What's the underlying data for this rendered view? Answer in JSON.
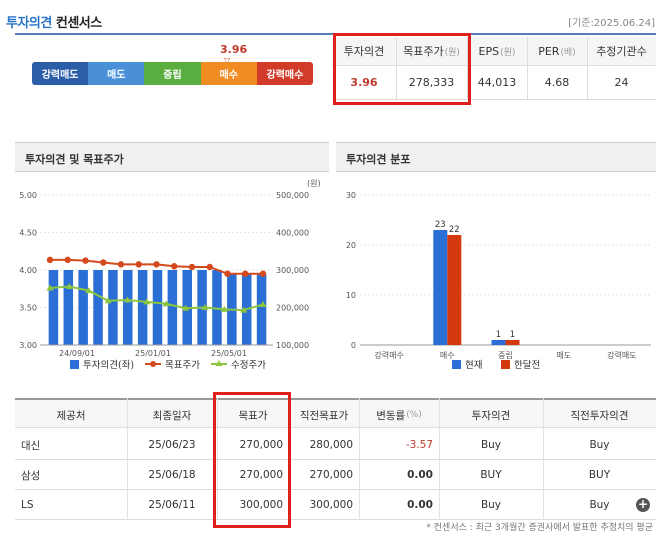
{
  "header": {
    "title_a": "투자의견",
    "title_b": "컨센서스",
    "date": "[기준:2025.06.24]"
  },
  "scale": {
    "score": "3.96",
    "marker": "▽",
    "segments": [
      {
        "label": "강력매도",
        "color": "#2c5ea8"
      },
      {
        "label": "매도",
        "color": "#4a90d9"
      },
      {
        "label": "중립",
        "color": "#5aad3f"
      },
      {
        "label": "매수",
        "color": "#f08c21"
      },
      {
        "label": "강력매수",
        "color": "#d23b2a"
      }
    ]
  },
  "summary": {
    "headers": [
      "투자의견",
      "목표주가",
      "EPS",
      "PER",
      "추정기관수"
    ],
    "units": [
      "",
      "(원)",
      "(원)",
      "(배)",
      ""
    ],
    "values": [
      "3.96",
      "278,333",
      "44,013",
      "4.68",
      "24"
    ]
  },
  "chart_left": {
    "panel_title": "투자의견 및 목표주가",
    "y2_unit": "(원)",
    "chart_data": {
      "type": "bar",
      "x_ticks": [
        "24/09/01",
        "25/01/01",
        "25/05/01"
      ],
      "y_left_ticks": [
        "3.00",
        "3.50",
        "4.00",
        "4.50",
        "5.00"
      ],
      "y_right_ticks": [
        "100,000",
        "200,000",
        "300,000",
        "400,000",
        "500,000"
      ],
      "ylim_left": [
        3.0,
        5.0
      ],
      "ylim_right": [
        100000,
        500000
      ],
      "series": [
        {
          "name": "투자의견(좌)",
          "type": "bar",
          "color": "#2b6fd6",
          "values": [
            4.0,
            4.0,
            4.0,
            4.0,
            4.0,
            4.0,
            4.0,
            4.0,
            4.0,
            4.0,
            4.0,
            4.0,
            3.95,
            3.95,
            3.95
          ]
        },
        {
          "name": "목표주가",
          "type": "line",
          "color": "#d44a1c",
          "values": [
            327000,
            327000,
            325000,
            320000,
            315000,
            315000,
            315000,
            310000,
            308000,
            308000,
            290000,
            290000,
            290000
          ]
        },
        {
          "name": "수정주가",
          "type": "line",
          "color": "#8cc63f",
          "values": [
            252000,
            256000,
            245000,
            218000,
            220000,
            215000,
            210000,
            198000,
            200000,
            195000,
            193000,
            208000
          ]
        }
      ]
    }
  },
  "chart_right": {
    "panel_title": "투자의견 분포",
    "chart_data": {
      "type": "bar",
      "categories": [
        "강력매수",
        "매수",
        "중립",
        "매도",
        "강력매도"
      ],
      "ylim": [
        0,
        30
      ],
      "y_ticks": [
        "0",
        "10",
        "20",
        "30"
      ],
      "series": [
        {
          "name": "현재",
          "color": "#2b6fd6",
          "values": [
            0,
            23,
            1,
            0,
            0
          ]
        },
        {
          "name": "한달전",
          "color": "#d4380d",
          "values": [
            0,
            22,
            1,
            0,
            0
          ]
        }
      ]
    }
  },
  "table": {
    "headers": [
      "제공처",
      "최종일자",
      "목표가",
      "직전목표가",
      "변동률",
      "투자의견",
      "직전투자의견"
    ],
    "change_unit": "(%)",
    "rows": [
      {
        "provider": "대신",
        "date": "25/06/23",
        "target": "270,000",
        "prev_target": "280,000",
        "change": "-3.57",
        "opinion": "Buy",
        "prev_opinion": "Buy"
      },
      {
        "provider": "삼성",
        "date": "25/06/18",
        "target": "270,000",
        "prev_target": "270,000",
        "change": "0.00",
        "opinion": "BUY",
        "prev_opinion": "BUY"
      },
      {
        "provider": "LS",
        "date": "25/06/11",
        "target": "300,000",
        "prev_target": "300,000",
        "change": "0.00",
        "opinion": "Buy",
        "prev_opinion": "Buy"
      }
    ],
    "more_icon": "+"
  },
  "footnote": "* 컨센서스 : 최근 3개월간 증권사에서 발표한 추정치의 평균"
}
